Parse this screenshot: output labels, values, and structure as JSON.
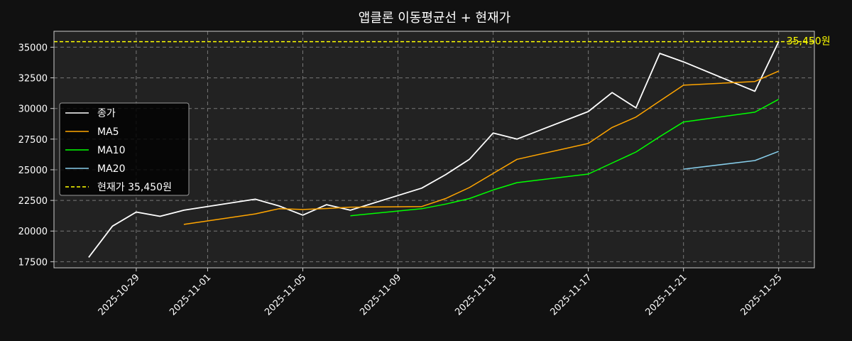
{
  "chart_data": {
    "type": "line",
    "title": "앱클론 이동평균선 + 현재가",
    "xlabel": "",
    "ylabel": "",
    "x_ticks": [
      "2025-10-29",
      "2025-11-01",
      "2025-11-05",
      "2025-11-09",
      "2025-11-13",
      "2025-11-17",
      "2025-11-21",
      "2025-11-25"
    ],
    "y_ticks": [
      17500,
      20000,
      22500,
      25000,
      27500,
      30000,
      32500,
      35000
    ],
    "xlim": [
      "2025-10-25T13:00",
      "2025-11-26T12:00"
    ],
    "ylim": [
      17000,
      36300
    ],
    "grid": true,
    "legend_position": "left",
    "series": [
      {
        "name": "종가",
        "color": "#ffffff",
        "x": [
          "2025-10-27",
          "2025-10-28",
          "2025-10-29",
          "2025-10-30",
          "2025-10-31",
          "2025-11-03",
          "2025-11-04",
          "2025-11-05",
          "2025-11-06",
          "2025-11-07",
          "2025-11-10",
          "2025-11-11",
          "2025-11-12",
          "2025-11-13",
          "2025-11-14",
          "2025-11-17",
          "2025-11-18",
          "2025-11-19",
          "2025-11-20",
          "2025-11-21",
          "2025-11-24",
          "2025-11-25"
        ],
        "values": [
          17850,
          20400,
          21550,
          21200,
          21700,
          22600,
          22050,
          21300,
          22150,
          21700,
          23500,
          24600,
          25850,
          28000,
          27500,
          29750,
          31300,
          30050,
          34500,
          33800,
          31400,
          35450
        ]
      },
      {
        "name": "MA5",
        "color": "#ffa500",
        "x": [
          "2025-10-31",
          "2025-11-03",
          "2025-11-04",
          "2025-11-05",
          "2025-11-06",
          "2025-11-07",
          "2025-11-10",
          "2025-11-11",
          "2025-11-12",
          "2025-11-13",
          "2025-11-14",
          "2025-11-17",
          "2025-11-18",
          "2025-11-19",
          "2025-11-20",
          "2025-11-21",
          "2025-11-24",
          "2025-11-25"
        ],
        "values": [
          20540,
          21400,
          21820,
          21760,
          21840,
          21950,
          22000,
          22650,
          23550,
          24700,
          25850,
          27150,
          28450,
          29300,
          30600,
          31900,
          32200,
          33050
        ]
      },
      {
        "name": "MA10",
        "color": "#00ff00",
        "x": [
          "2025-11-07",
          "2025-11-10",
          "2025-11-11",
          "2025-11-12",
          "2025-11-13",
          "2025-11-14",
          "2025-11-17",
          "2025-11-18",
          "2025-11-19",
          "2025-11-20",
          "2025-11-21",
          "2025-11-24",
          "2025-11-25"
        ],
        "values": [
          21250,
          21820,
          22200,
          22650,
          23350,
          23950,
          24650,
          25550,
          26450,
          27700,
          28900,
          29700,
          30750
        ]
      },
      {
        "name": "MA20",
        "color": "#87ceeb",
        "x": [
          "2025-11-21",
          "2025-11-24",
          "2025-11-25"
        ],
        "values": [
          25050,
          25750,
          26500
        ]
      }
    ],
    "reference_line": {
      "label": "현재가 35,450원",
      "annotation": "35,450원",
      "value": 35450,
      "color": "#ffff00"
    },
    "colors": {
      "background": "#111111",
      "plot_background": "#222222",
      "axis": "#cccccc",
      "text": "#ffffff",
      "grid": "#777777"
    }
  }
}
